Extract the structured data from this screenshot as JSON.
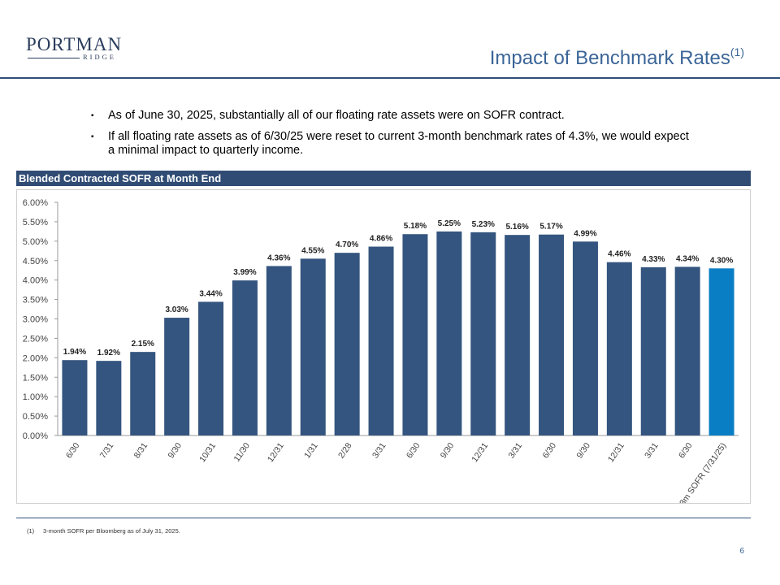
{
  "logo": {
    "main": "PORTMAN",
    "sub": "RIDGE"
  },
  "title": {
    "text": "Impact of Benchmark Rates",
    "superscript": "(1)"
  },
  "bullets": [
    "As of June 30, 2025, substantially all of our floating rate assets were on SOFR contract.",
    "If all floating rate assets as of 6/30/25 were reset to current 3-month benchmark rates of 4.3%, we would expect a minimal impact to quarterly income."
  ],
  "bullet_mark": "▪",
  "chart_header": "Blended Contracted SOFR at Month End",
  "chart_data": {
    "type": "bar",
    "title": "Blended Contracted SOFR at Month End",
    "categories": [
      "6/30",
      "7/31",
      "8/31",
      "9/30",
      "10/31",
      "11/30",
      "12/31",
      "1/31",
      "2/28",
      "3/31",
      "6/30",
      "9/30",
      "12/31",
      "3/31",
      "6/30",
      "9/30",
      "12/31",
      "3/31",
      "6/30",
      "3m SOFR (7/31/25)"
    ],
    "values": [
      1.94,
      1.92,
      2.15,
      3.03,
      3.44,
      3.99,
      4.36,
      4.55,
      4.7,
      4.86,
      5.18,
      5.25,
      5.23,
      5.16,
      5.17,
      4.99,
      4.46,
      4.33,
      4.34,
      4.3
    ],
    "labels": [
      "1.94%",
      "1.92%",
      "2.15%",
      "3.03%",
      "3.44%",
      "3.99%",
      "4.36%",
      "4.55%",
      "4.70%",
      "4.86%",
      "5.18%",
      "5.25%",
      "5.23%",
      "5.16%",
      "5.17%",
      "4.99%",
      "4.46%",
      "4.33%",
      "4.34%",
      "4.30%"
    ],
    "yticks": [
      "0.00%",
      "0.50%",
      "1.00%",
      "1.50%",
      "2.00%",
      "2.50%",
      "3.00%",
      "3.50%",
      "4.00%",
      "4.50%",
      "5.00%",
      "5.50%",
      "6.00%"
    ],
    "ylim": [
      0,
      6
    ],
    "xlabel": "",
    "ylabel": "",
    "grid": false,
    "colors": {
      "bar": "#34557f",
      "highlight": "#0a7ec4"
    }
  },
  "footnote": {
    "num": "(1)",
    "text": "3-month SOFR per Bloomberg as of July 31, 2025."
  },
  "page_number": "6"
}
